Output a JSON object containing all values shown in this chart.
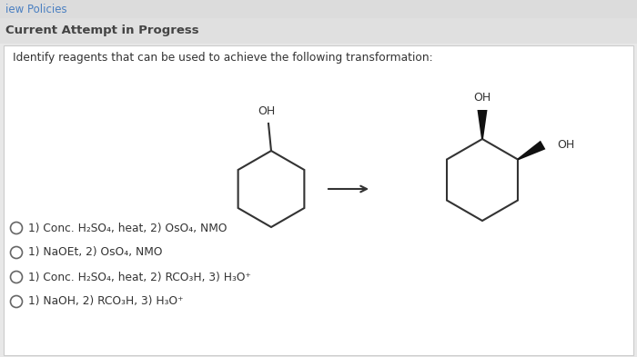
{
  "bg_color": "#e8e8e8",
  "white_bg": "#f5f5f5",
  "content_bg": "#ffffff",
  "header1_text": "iew Policies",
  "header1_color": "#4a7fc1",
  "header2_text": "Current Attempt in Progress",
  "header2_color": "#444444",
  "question_text": "Identify reagents that can be used to achieve the following transformation:",
  "options_line1": "1) Conc. H",
  "options": [
    "1) Conc. H₂SO₄, heat, 2) OsO₄, NMO",
    "1) NaOEt, 2) OsO₄, NMO",
    "1) Conc. H₂SO₄, heat, 2) RCO₃H, 3) H₃O⁺",
    "1) NaOH, 2) RCO₃H, 3) H₃O⁺"
  ]
}
